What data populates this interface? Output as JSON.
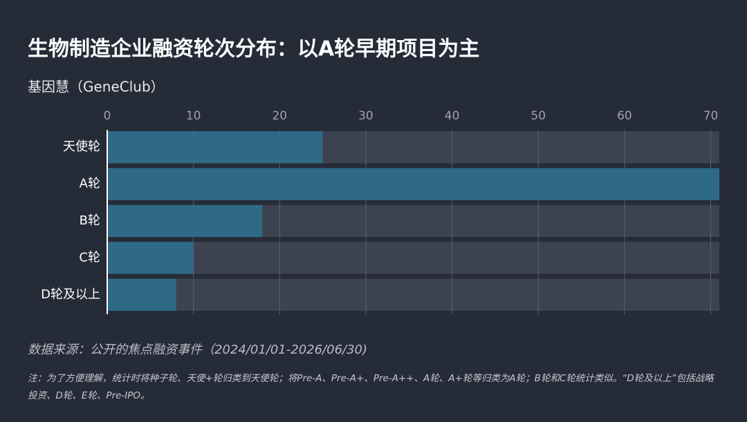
{
  "chart_data": {
    "type": "barh",
    "title": "生物制造企业融资轮次分布：以A轮早期项目为主",
    "subtitle": "基因慧（GeneClub）",
    "categories": [
      "天使轮",
      "A轮",
      "B轮",
      "C轮",
      "D轮及以上"
    ],
    "values": [
      25,
      71,
      18,
      10,
      8
    ],
    "color": "#2e6a85",
    "track_color": "#3d4250",
    "xlim": [
      0,
      71
    ],
    "xticks": [
      0,
      10,
      20,
      30,
      40,
      50,
      60,
      70
    ],
    "grid": true,
    "source": "数据来源：公开的焦点融资事件（2024/01/01-2026/06/30)",
    "note": "注：为了方便理解，统计时将种子轮、天使+轮归类到天使轮；将Pre-A、Pre-A+、Pre-A++、A轮、A+轮等归类为A轮；B轮和C轮统计类似。“D轮及以上”包括战略投资、D轮、E轮、Pre-IPO。"
  }
}
